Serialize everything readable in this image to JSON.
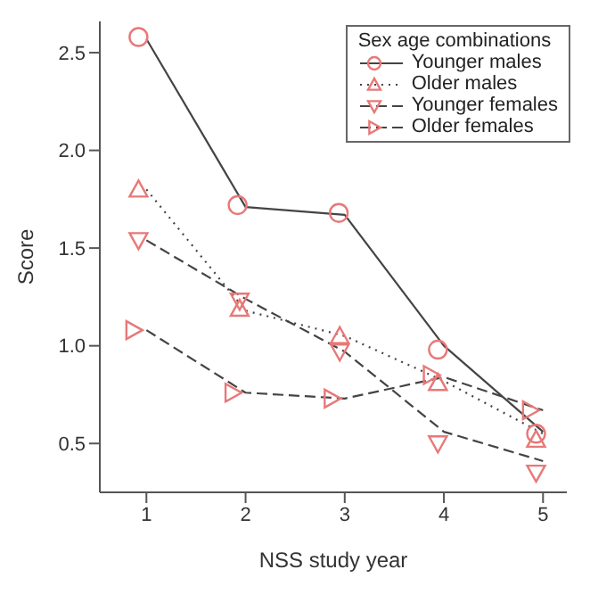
{
  "chart_data": {
    "type": "scatter",
    "xlabel": "NSS study year",
    "ylabel": "Score",
    "legend_title": "Sex age combinations",
    "legend": "top right",
    "grid": false,
    "xlim": [
      0.53,
      5.24
    ],
    "xticks": [
      1,
      2,
      3,
      4,
      5
    ],
    "ylim": [
      0.25,
      2.66
    ],
    "yticks": [
      0.5,
      {
        "value": 1,
        "label": "1.0"
      },
      1.5,
      {
        "value": 2,
        "label": "2.0"
      },
      2.5
    ],
    "series": [
      {
        "name": "Younger males",
        "marker": "circle",
        "line_style": "solid",
        "color": "#e87878",
        "x": [
          0.92,
          1.92,
          2.94,
          3.94,
          4.93
        ],
        "values": [
          2.58,
          1.72,
          1.68,
          0.98,
          0.55
        ]
      },
      {
        "name": "Older males",
        "marker": "triangle",
        "line_style": "dotted",
        "color": "#e87878",
        "x": [
          0.92,
          1.94,
          2.95,
          3.94,
          4.93
        ],
        "values": [
          1.8,
          1.19,
          1.05,
          0.81,
          0.52
        ]
      },
      {
        "name": "Younger females",
        "marker": "triangle-down",
        "line_style": "dashed",
        "color": "#e87878",
        "x": [
          0.92,
          1.94,
          2.95,
          3.94,
          4.93
        ],
        "values": [
          1.54,
          1.23,
          0.97,
          0.5,
          0.35
        ]
      },
      {
        "name": "Older females",
        "marker": "triangle-right",
        "line_style": "dashed",
        "color": "#e87878",
        "x": [
          0.87,
          1.87,
          2.87,
          3.87,
          4.87
        ],
        "values": [
          1.08,
          0.76,
          0.73,
          0.85,
          0.67
        ]
      },
      {
        "type": "line",
        "line_style": "solid",
        "color": "#444444",
        "x": [
          1,
          2,
          3,
          4,
          5
        ],
        "values": [
          2.57,
          1.71,
          1.67,
          1.0,
          0.56
        ]
      },
      {
        "type": "line",
        "line_style": "dotted",
        "color": "#444444",
        "x": [
          1,
          2,
          3,
          4,
          5
        ],
        "values": [
          1.8,
          1.18,
          1.05,
          0.82,
          0.55
        ]
      },
      {
        "type": "line",
        "line_style": "dashed",
        "color": "#444444",
        "x": [
          1,
          2,
          3,
          4,
          5
        ],
        "values": [
          1.54,
          1.24,
          0.97,
          0.56,
          0.41
        ]
      },
      {
        "type": "line",
        "line_style": "dashed",
        "color": "#444444",
        "x": [
          1,
          2,
          3,
          4,
          5
        ],
        "values": [
          1.08,
          0.76,
          0.73,
          0.84,
          0.67
        ]
      }
    ]
  }
}
